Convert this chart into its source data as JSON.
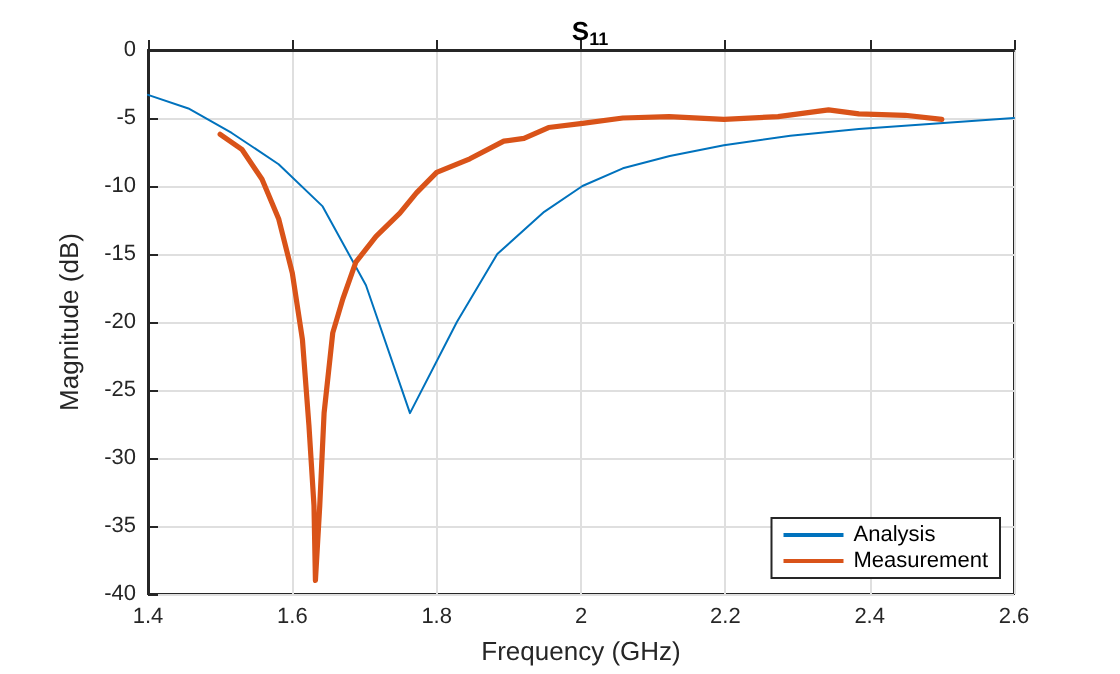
{
  "chart_data": {
    "type": "line",
    "title": "S$_{11}$",
    "xlabel": "Frequency (GHz)",
    "ylabel": "Magnitude (dB)",
    "xlim": [
      1.4,
      2.6
    ],
    "xticks": [
      1.4,
      1.6,
      1.8,
      2,
      2.2,
      2.4,
      2.6
    ],
    "ylim": [
      -40,
      0
    ],
    "yticks": [
      -40,
      -35,
      -30,
      -25,
      -20,
      -15,
      -10,
      -5,
      0
    ],
    "grid": true,
    "legend": "bottom right",
    "series": [
      {
        "name": "Analysis",
        "color": "#0072bd",
        "x": [
          1.4,
          1.456,
          1.516,
          1.581,
          1.642,
          1.702,
          1.763,
          1.828,
          1.884,
          1.949,
          2.002,
          2.058,
          2.123,
          2.198,
          2.29,
          2.385,
          2.6
        ],
        "values": [
          -3.3,
          -4.3,
          -6.1,
          -8.4,
          -11.5,
          -17.3,
          -26.7,
          -20.0,
          -15.0,
          -11.9,
          -10.0,
          -8.7,
          -7.8,
          -7.0,
          -6.3,
          -5.8,
          -5.0
        ]
      },
      {
        "name": "Measurement",
        "color": "#d95319",
        "x": [
          1.5,
          1.53,
          1.558,
          1.581,
          1.6,
          1.614,
          1.623,
          1.63,
          1.632,
          1.638,
          1.644,
          1.656,
          1.67,
          1.688,
          1.716,
          1.749,
          1.772,
          1.8,
          1.846,
          1.893,
          1.921,
          1.955,
          2.002,
          2.058,
          2.122,
          2.198,
          2.273,
          2.343,
          2.385,
          2.449,
          2.5
        ],
        "values": [
          -6.2,
          -7.3,
          -9.5,
          -12.4,
          -16.4,
          -21.3,
          -27.6,
          -33.5,
          -39.0,
          -33.5,
          -26.7,
          -20.8,
          -18.3,
          -15.6,
          -13.7,
          -12.0,
          -10.5,
          -9.0,
          -8.0,
          -6.7,
          -6.5,
          -5.7,
          -5.4,
          -5.0,
          -4.9,
          -5.1,
          -4.9,
          -4.4,
          -4.7,
          -4.8,
          -5.1
        ]
      }
    ]
  }
}
